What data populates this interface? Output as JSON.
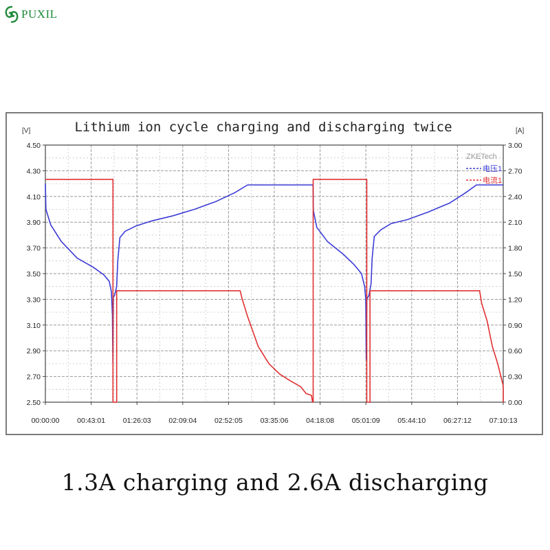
{
  "brand": {
    "name": "PUXIL",
    "accent": "#1f8a3a"
  },
  "chart_data": {
    "type": "line",
    "title": "Lithium ion cycle charging and discharging twice",
    "watermark": "ZKETech",
    "y_left_unit": "[V]",
    "y_right_unit": "[A]",
    "y_left_ticks": [
      "4.50",
      "4.30",
      "4.10",
      "3.90",
      "3.70",
      "3.50",
      "3.30",
      "3.10",
      "2.90",
      "2.70",
      "2.50"
    ],
    "y_right_ticks": [
      "3.00",
      "2.70",
      "2.40",
      "2.10",
      "1.80",
      "1.50",
      "1.20",
      "0.90",
      "0.60",
      "0.30",
      "0.00"
    ],
    "x_ticks": [
      "00:00:00",
      "00:43:01",
      "01:26:03",
      "02:09:04",
      "02:52:05",
      "03:35:06",
      "04:18:08",
      "05:01:09",
      "05:44:10",
      "06:27:12",
      "07:10:13"
    ],
    "ylim_left": [
      2.5,
      4.5
    ],
    "ylim_right": [
      0,
      3
    ],
    "xlim_minutes": [
      0,
      430.2
    ],
    "grid": true,
    "legend_position": "top-right",
    "series": [
      {
        "name": "电压1",
        "axis": "left",
        "color": "#3b3bd6",
        "points": [
          [
            0,
            4.2
          ],
          [
            0.5,
            4.0
          ],
          [
            5,
            3.88
          ],
          [
            15,
            3.75
          ],
          [
            30,
            3.62
          ],
          [
            45,
            3.55
          ],
          [
            55,
            3.49
          ],
          [
            60,
            3.44
          ],
          [
            62,
            3.36
          ],
          [
            63,
            3.18
          ],
          [
            63.4,
            2.8
          ],
          [
            63.8,
            3.32
          ],
          [
            65,
            3.33
          ],
          [
            67,
            3.4
          ],
          [
            68,
            3.6
          ],
          [
            70,
            3.78
          ],
          [
            75,
            3.83
          ],
          [
            85,
            3.87
          ],
          [
            100,
            3.91
          ],
          [
            120,
            3.95
          ],
          [
            140,
            4.0
          ],
          [
            160,
            4.06
          ],
          [
            178,
            4.13
          ],
          [
            190,
            4.19
          ],
          [
            230,
            4.19
          ],
          [
            251,
            4.19
          ],
          [
            251.5,
            4.18
          ],
          [
            251.8,
            3.99
          ],
          [
            255,
            3.86
          ],
          [
            265,
            3.75
          ],
          [
            280,
            3.65
          ],
          [
            290,
            3.57
          ],
          [
            297,
            3.5
          ],
          [
            300,
            3.4
          ],
          [
            301,
            3.3
          ],
          [
            301.5,
            2.83
          ],
          [
            302,
            3.3
          ],
          [
            304,
            3.33
          ],
          [
            306,
            3.42
          ],
          [
            307,
            3.62
          ],
          [
            309,
            3.79
          ],
          [
            315,
            3.84
          ],
          [
            325,
            3.89
          ],
          [
            340,
            3.92
          ],
          [
            360,
            3.98
          ],
          [
            380,
            4.05
          ],
          [
            395,
            4.13
          ],
          [
            405,
            4.19
          ],
          [
            430,
            4.19
          ]
        ]
      },
      {
        "name": "电流1",
        "axis": "right",
        "color": "#e03030",
        "points": [
          [
            0,
            2.6
          ],
          [
            63.5,
            2.6
          ],
          [
            63.5,
            0.0
          ],
          [
            67,
            0.0
          ],
          [
            67,
            1.3
          ],
          [
            183,
            1.3
          ],
          [
            185,
            1.2
          ],
          [
            190,
            1.0
          ],
          [
            200,
            0.65
          ],
          [
            210,
            0.45
          ],
          [
            220,
            0.33
          ],
          [
            230,
            0.25
          ],
          [
            240,
            0.18
          ],
          [
            245,
            0.1
          ],
          [
            250,
            0.08
          ],
          [
            251,
            0.0
          ],
          [
            251.6,
            0.0
          ],
          [
            251.6,
            2.6
          ],
          [
            302,
            2.6
          ],
          [
            302,
            0.0
          ],
          [
            305,
            0.0
          ],
          [
            305,
            1.3
          ],
          [
            408,
            1.3
          ],
          [
            410,
            1.15
          ],
          [
            415,
            0.95
          ],
          [
            420,
            0.65
          ],
          [
            425,
            0.45
          ],
          [
            428,
            0.3
          ],
          [
            430,
            0.2
          ],
          [
            435,
            0.15
          ],
          [
            440,
            0.08
          ],
          [
            443,
            0.0
          ]
        ]
      }
    ]
  },
  "caption": "1.3A charging and 2.6A discharging"
}
